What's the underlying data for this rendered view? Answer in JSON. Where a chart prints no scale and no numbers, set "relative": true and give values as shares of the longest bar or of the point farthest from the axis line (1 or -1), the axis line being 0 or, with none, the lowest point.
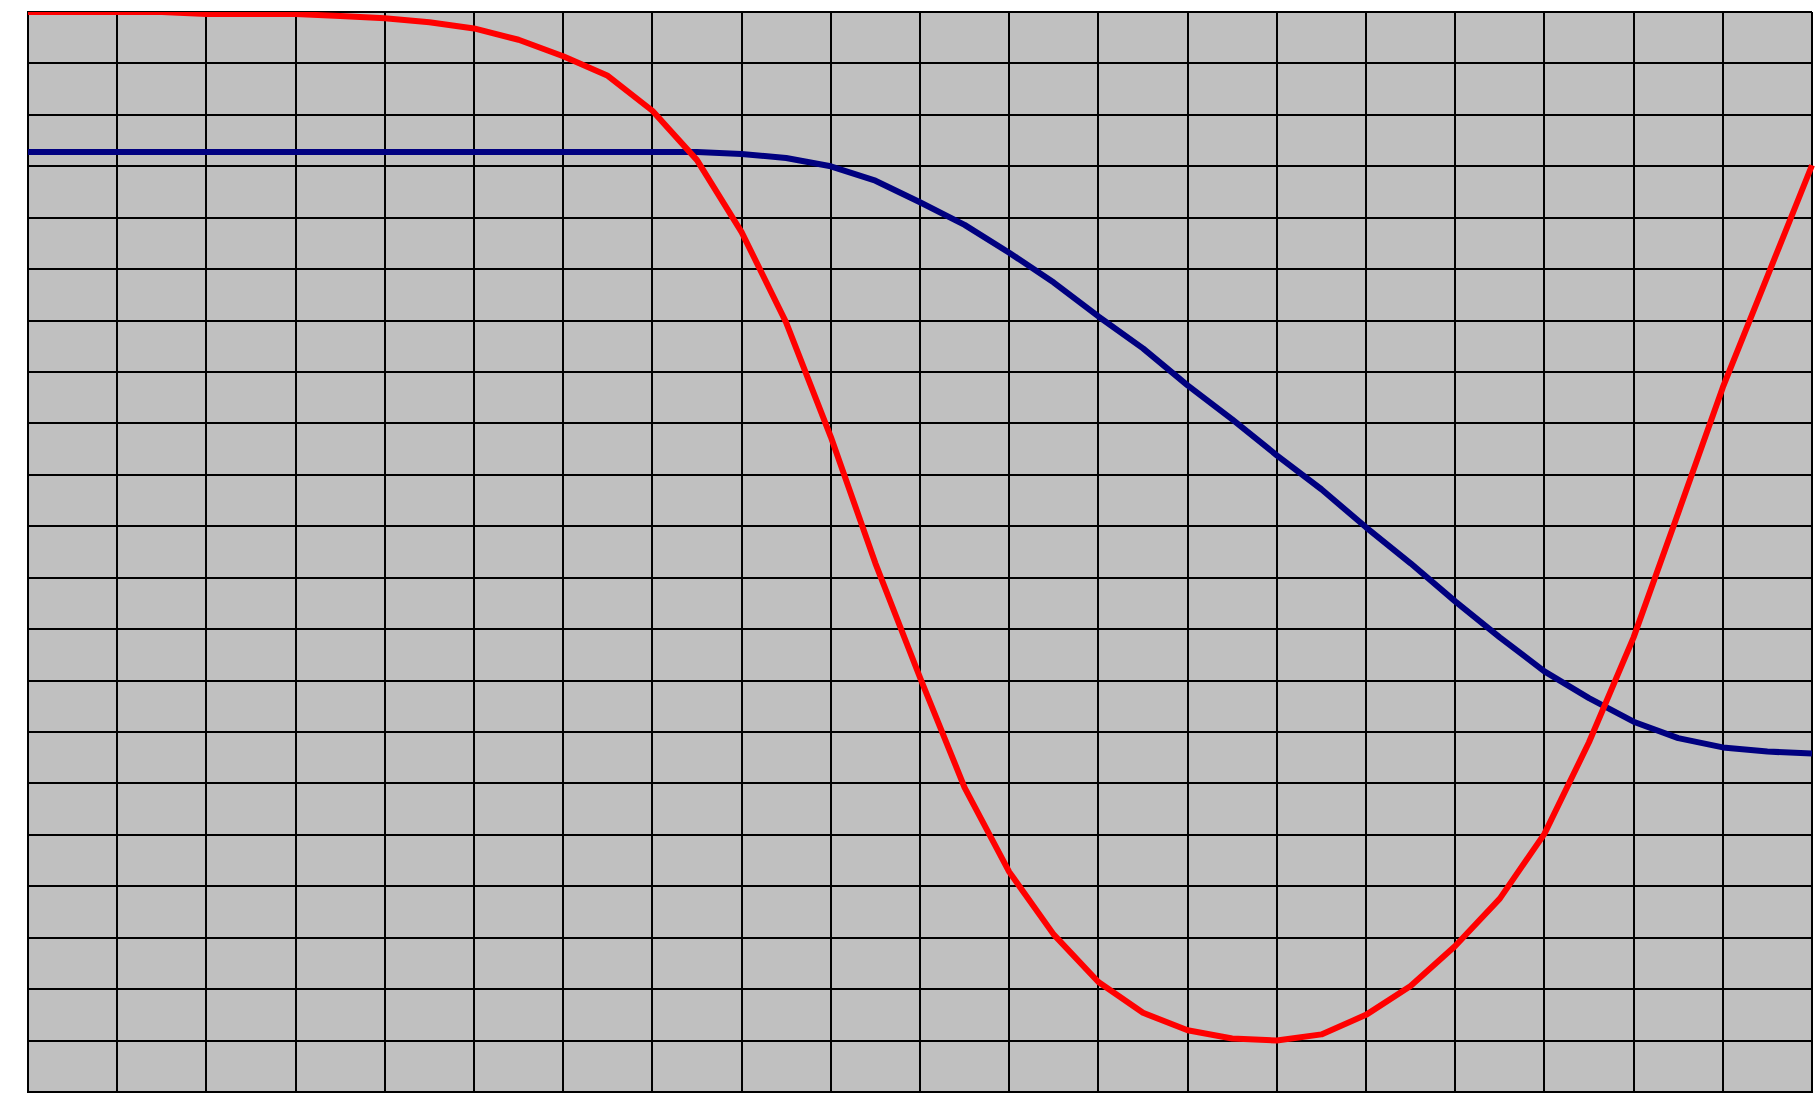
{
  "chart_data": {
    "type": "line",
    "relative": true,
    "grid": true,
    "marker": "none",
    "line_style": "solid",
    "categories": [
      null,
      null,
      null,
      null,
      null,
      null,
      null,
      null,
      null,
      null,
      null,
      null,
      null,
      null,
      null,
      null,
      null,
      null,
      null,
      null,
      null,
      null,
      null,
      null,
      null,
      null,
      null,
      null,
      null,
      null,
      null,
      null,
      null,
      null,
      null,
      null,
      null,
      null,
      null,
      null,
      null
    ],
    "series": [
      {
        "color": "#ff0000",
        "values": [
          1.0,
          1.0,
          1.0,
          1.0,
          0.998,
          0.998,
          0.998,
          0.996,
          0.994,
          0.99,
          0.984,
          0.973,
          0.957,
          0.938,
          0.904,
          0.856,
          0.786,
          0.698,
          0.587,
          0.464,
          0.353,
          0.246,
          0.164,
          0.103,
          0.057,
          0.027,
          0.01,
          0.002,
          0,
          0.006,
          0.025,
          0.053,
          0.092,
          0.138,
          0.201,
          0.29,
          0.392,
          0.513,
          0.635,
          0.743,
          0.851
        ]
      },
      {
        "color": "#000080",
        "values": [
          0.864,
          0.864,
          0.864,
          0.864,
          0.864,
          0.864,
          0.864,
          0.864,
          0.864,
          0.864,
          0.864,
          0.864,
          0.864,
          0.864,
          0.864,
          0.864,
          0.862,
          0.858,
          0.85,
          0.836,
          0.815,
          0.793,
          0.766,
          0.737,
          0.704,
          0.673,
          0.637,
          0.604,
          0.569,
          0.536,
          0.499,
          0.464,
          0.427,
          0.392,
          0.359,
          0.333,
          0.31,
          0.294,
          0.285,
          0.281,
          0.279
        ]
      }
    ]
  }
}
